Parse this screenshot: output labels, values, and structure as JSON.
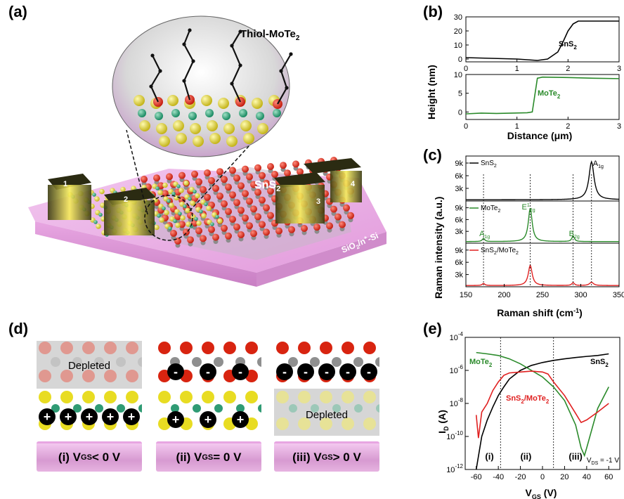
{
  "panel_labels": {
    "a": "(a)",
    "b": "(b)",
    "c": "(c)",
    "d": "(d)",
    "e": "(e)"
  },
  "panel_a": {
    "inset_label": "Thiol-MoTe",
    "inset_label_sub": "2",
    "channel_label": "SnS",
    "channel_label_sub": "2",
    "substrate_label": "SiO",
    "substrate_label_sub": "2",
    "substrate_label_tail": "/n",
    "substrate_label_sup": "+",
    "substrate_label_end": "-Si",
    "electrodes": [
      "1",
      "2",
      "3",
      "4"
    ]
  },
  "panel_b": {
    "y_title": "Height (nm)",
    "x_title": "Distance (μm)",
    "colors": {
      "snS2": "#000000",
      "moTe2": "#2a8a2a"
    },
    "chart_data": [
      {
        "type": "line",
        "series_name": "SnS2",
        "label": "SnS",
        "label_sub": "2",
        "x": [
          0,
          0.5,
          1.0,
          1.4,
          1.6,
          1.8,
          1.9,
          2.0,
          2.1,
          2.2,
          2.4,
          3.0
        ],
        "y": [
          1,
          0.5,
          0,
          -1,
          0,
          5,
          12,
          20,
          25,
          27,
          27,
          27
        ],
        "xlim": [
          0,
          3
        ],
        "ylim": [
          -2,
          30
        ],
        "yticks": [
          0,
          10,
          20,
          30
        ],
        "xticks": [
          0,
          1,
          2,
          3
        ]
      },
      {
        "type": "line",
        "series_name": "MoTe2",
        "label": "MoTe",
        "label_sub": "2",
        "x": [
          0,
          0.3,
          0.6,
          0.9,
          1.2,
          1.3,
          1.4,
          1.5,
          2.0,
          2.5,
          3.0
        ],
        "y": [
          -0.5,
          -0.3,
          -0.4,
          -0.3,
          -0.2,
          0,
          9,
          9.3,
          9.2,
          9.0,
          8.9
        ],
        "xlim": [
          0,
          3
        ],
        "ylim": [
          -2,
          10
        ],
        "yticks": [
          0,
          5,
          10
        ],
        "xticks": [
          0,
          1,
          2,
          3
        ]
      }
    ]
  },
  "panel_c": {
    "y_title": "Raman intensity (a.u.)",
    "x_title": "Raman shift (cm",
    "x_title_sup": "-1",
    "x_title_end": ")",
    "xticks": [
      150,
      200,
      250,
      300,
      350
    ],
    "yticks": [
      "3k",
      "6k",
      "9k"
    ],
    "legends": [
      {
        "text": "SnS",
        "sub": "2",
        "color": "#000000"
      },
      {
        "text": "MoTe",
        "sub": "2",
        "color": "#2a8a2a"
      },
      {
        "text": "SnS",
        "sub": "2",
        "tail": "/MoTe",
        "sub2": "2",
        "color": "#e02020"
      }
    ],
    "peak_labels": [
      {
        "base": "A",
        "sub": "1g",
        "sup": "",
        "color": "#000000"
      },
      {
        "base": "E",
        "sub": "2g",
        "sup": "1",
        "color": "#2a8a2a"
      },
      {
        "base": "A",
        "sub": "1g",
        "sup": "",
        "color": "#2a8a2a"
      },
      {
        "base": "B",
        "sub": "2g",
        "sup": "",
        "color": "#2a8a2a"
      }
    ],
    "chart_data": {
      "type": "line",
      "xlim": [
        150,
        350
      ],
      "ylim": [
        0,
        10000
      ],
      "series": [
        {
          "name": "SnS2",
          "peaks": [
            {
              "x": 314,
              "height": 9000,
              "width": 4
            }
          ],
          "baseline": 300
        },
        {
          "name": "MoTe2",
          "peaks": [
            {
              "x": 234,
              "height": 8500,
              "width": 3
            },
            {
              "x": 173,
              "height": 800,
              "width": 2
            },
            {
              "x": 290,
              "height": 1400,
              "width": 2
            }
          ],
          "baseline": 400
        },
        {
          "name": "SnS2/MoTe2",
          "peaks": [
            {
              "x": 234,
              "height": 5000,
              "width": 3
            },
            {
              "x": 173,
              "height": 500,
              "width": 2
            },
            {
              "x": 290,
              "height": 700,
              "width": 2
            },
            {
              "x": 314,
              "height": 800,
              "width": 3
            }
          ],
          "baseline": 300
        }
      ],
      "guide_lines_x": [
        173,
        234,
        290,
        314
      ]
    }
  },
  "panel_d": {
    "depleted": "Depleted",
    "captions": [
      {
        "prefix": "(i) V",
        "sub": "GS",
        "suffix": " < 0 V"
      },
      {
        "prefix": "(ii) V",
        "sub": "GS",
        "suffix": " = 0 V"
      },
      {
        "prefix": "(iii) V",
        "sub": "GS",
        "suffix": " > 0 V"
      }
    ],
    "minus": "-",
    "plus": "+"
  },
  "panel_e": {
    "y_title": "I",
    "y_title_sub": "D",
    "y_title_end": " (A)",
    "x_title": "V",
    "x_title_sub": "GS",
    "x_title_end": " (V)",
    "region_labels": [
      "(i)",
      "(ii)",
      "(iii)"
    ],
    "vds_label": "V",
    "vds_sub": "DS",
    "vds_end": " = -1 V",
    "series_labels": [
      {
        "text": "MoTe",
        "sub": "2",
        "color": "#2a8a2a"
      },
      {
        "text": "SnS",
        "sub": "2",
        "color": "#000000"
      },
      {
        "text": "SnS",
        "sub": "2",
        "tail": "/MoTe",
        "sub2": "2",
        "color": "#e02020"
      }
    ],
    "chart_data": {
      "type": "line",
      "xlim": [
        -70,
        70
      ],
      "ylog": true,
      "ylim": [
        1e-12,
        0.0001
      ],
      "xticks": [
        -60,
        -40,
        -20,
        0,
        20,
        40,
        60
      ],
      "ytick_exponents": [
        -12,
        -10,
        -8,
        -6,
        -4
      ],
      "divider_x": [
        -38,
        10
      ],
      "series": [
        {
          "name": "SnS2",
          "color": "#000000",
          "x": [
            -60,
            -55,
            -50,
            -45,
            -40,
            -35,
            -30,
            -20,
            -10,
            0,
            10,
            20,
            30,
            40,
            50,
            60
          ],
          "y": [
            1e-12,
            1e-10,
            1e-09,
            6e-09,
            3e-08,
            1e-07,
            3e-07,
            1e-06,
            2e-06,
            3e-06,
            4e-06,
            5e-06,
            6e-06,
            7e-06,
            8e-06,
            1e-05
          ]
        },
        {
          "name": "MoTe2",
          "color": "#2a8a2a",
          "x": [
            -60,
            -50,
            -40,
            -30,
            -20,
            -10,
            0,
            10,
            20,
            30,
            35,
            38,
            40,
            50,
            60
          ],
          "y": [
            1.2e-05,
            1e-05,
            8e-06,
            5e-06,
            2.5e-06,
            1e-06,
            4e-07,
            1e-07,
            1.5e-08,
            5e-10,
            2e-11,
            7e-12,
            2e-11,
            5e-09,
            1e-07
          ]
        },
        {
          "name": "SnS2/MoTe2",
          "color": "#e02020",
          "x": [
            -60,
            -58,
            -55,
            -50,
            -45,
            -40,
            -35,
            -30,
            -20,
            -10,
            0,
            5,
            10,
            20,
            30,
            35,
            40,
            50,
            60
          ],
          "y": [
            2e-09,
            8e-11,
            3e-09,
            1e-08,
            6e-08,
            2e-07,
            5e-07,
            7e-07,
            8e-07,
            9e-07,
            8e-07,
            6e-07,
            2e-07,
            3e-08,
            2.5e-09,
            7e-10,
            1e-09,
            3e-09,
            1e-08
          ]
        }
      ]
    }
  }
}
